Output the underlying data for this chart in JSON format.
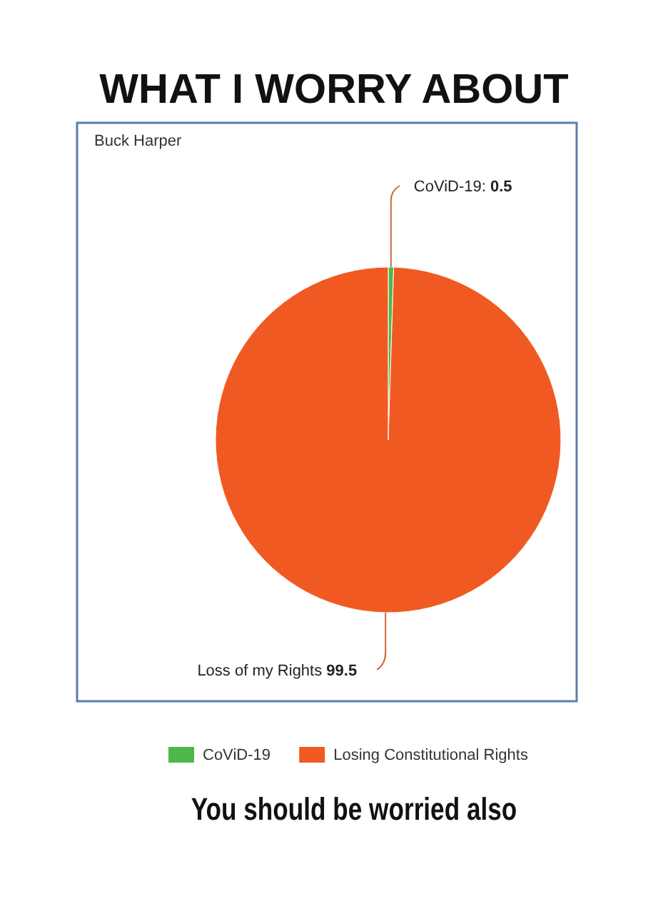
{
  "chart_data": {
    "type": "pie",
    "title": "WHAT I WORRY ABOUT",
    "subtitle": "Buck Harper",
    "categories": [
      "CoViD-19",
      "Losing Constitutional Rights"
    ],
    "values": [
      0.5,
      99.5
    ],
    "colors": [
      "#4db848",
      "#f05a22"
    ],
    "value_labels": [
      "CoViD-19: 0.5",
      "Loss of my Rights 99.5"
    ],
    "legend": "bottom",
    "annotations": [
      "You should be worried also"
    ]
  }
}
